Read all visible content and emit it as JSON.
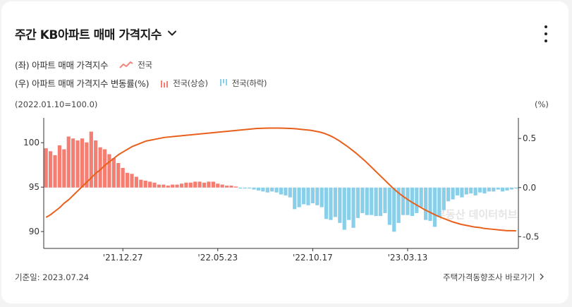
{
  "header": {
    "title": "주간 KB아파트 매매 가격지수"
  },
  "legend": {
    "left_axis_label": "(좌) 아파트 매매 가격지수",
    "line_series_label": "전국",
    "right_axis_label": "(우) 아파트 매매 가격지수 변동률(%)",
    "up_label": "전국(상승)",
    "down_label": "전국(하락)"
  },
  "notes": {
    "base": "(2022.01.10=100.0)",
    "unit": "(%)"
  },
  "footer": {
    "reference_date": "기준일: 2023.07.24",
    "link": "주택가격동향조사 바로가기"
  },
  "watermark": "부동산 데이터허브",
  "colors": {
    "line": "#e8601c",
    "up": "#f47e72",
    "down": "#89cfea",
    "axis": "#333333"
  },
  "chart_data": {
    "type": "bar+line",
    "x_tick_labels": [
      "'21.12.27",
      "'22.05.23",
      "'22.10.17",
      "'23.03.13"
    ],
    "x_tick_index": [
      17,
      38,
      59,
      80
    ],
    "left_axis": {
      "ticks": [
        "90",
        "95",
        "100"
      ],
      "ylim": [
        88.1,
        102.8
      ]
    },
    "right_axis": {
      "ticks": [
        "-0.5",
        "0.0",
        "0.5"
      ],
      "ylim": [
        -0.62,
        0.71
      ]
    },
    "series": [
      {
        "name": "전국",
        "kind": "line",
        "axis": "left",
        "values": [
          91.6,
          91.9,
          92.3,
          92.7,
          93.2,
          93.6,
          94.1,
          94.6,
          95.1,
          95.6,
          96.1,
          96.6,
          97.0,
          97.5,
          97.9,
          98.3,
          98.7,
          99.0,
          99.3,
          99.6,
          99.8,
          100.0,
          100.2,
          100.3,
          100.4,
          100.5,
          100.6,
          100.65,
          100.7,
          100.75,
          100.8,
          100.85,
          100.9,
          100.95,
          101.0,
          101.05,
          101.1,
          101.15,
          101.2,
          101.25,
          101.3,
          101.35,
          101.4,
          101.45,
          101.5,
          101.55,
          101.6,
          101.62,
          101.64,
          101.65,
          101.65,
          101.65,
          101.64,
          101.62,
          101.6,
          101.56,
          101.5,
          101.45,
          101.4,
          101.3,
          101.2,
          101.05,
          100.85,
          100.6,
          100.3,
          99.95,
          99.6,
          99.2,
          98.8,
          98.35,
          97.9,
          97.4,
          96.9,
          96.4,
          95.9,
          95.4,
          94.9,
          94.45,
          94.05,
          93.7,
          93.35,
          93.05,
          92.75,
          92.45,
          92.2,
          91.95,
          91.7,
          91.5,
          91.3,
          91.1,
          90.95,
          90.8,
          90.7,
          90.6,
          90.5,
          90.45,
          90.35,
          90.3,
          90.25,
          90.2,
          90.15,
          90.1,
          90.1,
          90.08
        ]
      },
      {
        "name": "변동률",
        "kind": "bar",
        "axis": "right",
        "values": [
          0.4,
          0.37,
          0.33,
          0.43,
          0.39,
          0.52,
          0.5,
          0.48,
          0.5,
          0.46,
          0.57,
          0.48,
          0.41,
          0.39,
          0.34,
          0.3,
          0.25,
          0.2,
          0.15,
          0.14,
          0.11,
          0.08,
          0.07,
          0.06,
          0.05,
          0.03,
          0.03,
          0.02,
          0.03,
          0.03,
          0.04,
          0.05,
          0.05,
          0.06,
          0.06,
          0.05,
          0.06,
          0.06,
          0.04,
          0.03,
          0.02,
          0.02,
          0.01,
          -0.01,
          -0.01,
          -0.01,
          -0.02,
          -0.03,
          -0.04,
          -0.05,
          -0.04,
          -0.05,
          -0.07,
          -0.08,
          -0.1,
          -0.22,
          -0.2,
          -0.17,
          -0.18,
          -0.16,
          -0.18,
          -0.2,
          -0.32,
          -0.33,
          -0.3,
          -0.36,
          -0.43,
          -0.33,
          -0.41,
          -0.31,
          -0.26,
          -0.28,
          -0.28,
          -0.29,
          -0.29,
          -0.26,
          -0.38,
          -0.45,
          -0.36,
          -0.28,
          -0.28,
          -0.29,
          -0.26,
          -0.2,
          -0.33,
          -0.34,
          -0.4,
          -0.3,
          -0.23,
          -0.14,
          -0.12,
          -0.08,
          -0.1,
          -0.07,
          -0.06,
          -0.08,
          -0.05,
          -0.06,
          -0.04,
          -0.04,
          -0.02,
          -0.04,
          -0.03,
          -0.02,
          -0.01
        ]
      }
    ]
  }
}
